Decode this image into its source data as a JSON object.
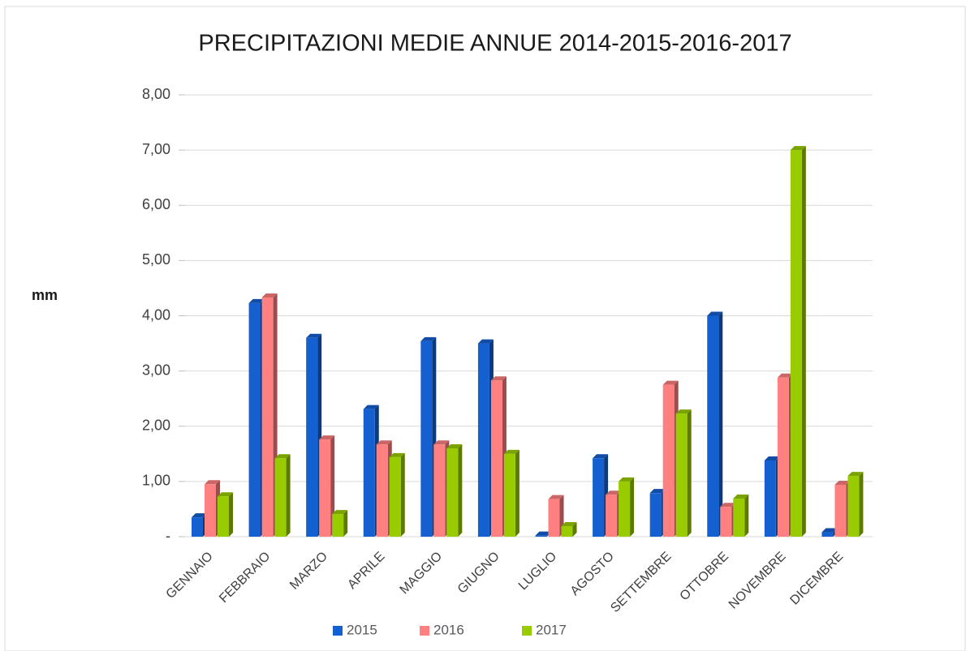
{
  "chart_data": {
    "type": "bar3d",
    "title": "PRECIPITAZIONI MEDIE ANNUE 2014-2015-2016-2017",
    "y_label": "mm",
    "categories": [
      "GENNAIO",
      "FEBBRAIO",
      "MARZO",
      "APRILE",
      "MAGGIO",
      "GIUGNO",
      "LUGLIO",
      "AGOSTO",
      "SETTEMBRE",
      "OTTOBRE",
      "NOVEMBRE",
      "DICEMBRE"
    ],
    "series": [
      {
        "name": "2015",
        "color": "#1560d0",
        "values": [
          0.35,
          4.23,
          3.6,
          2.31,
          3.54,
          3.5,
          0.02,
          1.42,
          0.79,
          4.0,
          1.38,
          0.08
        ]
      },
      {
        "name": "2016",
        "color": "#ff8080",
        "values": [
          0.95,
          4.33,
          1.76,
          1.67,
          1.67,
          2.83,
          0.68,
          0.76,
          2.75,
          0.54,
          2.88,
          0.94
        ]
      },
      {
        "name": "2017",
        "color": "#99cc00",
        "values": [
          0.73,
          1.42,
          0.41,
          1.44,
          1.6,
          1.5,
          0.19,
          1.0,
          2.23,
          0.69,
          7.0,
          1.1
        ]
      }
    ],
    "ylim": [
      0,
      8
    ],
    "yticks": [
      {
        "value": 0,
        "label": "-"
      },
      {
        "value": 1,
        "label": "1,00"
      },
      {
        "value": 2,
        "label": "2,00"
      },
      {
        "value": 3,
        "label": "3,00"
      },
      {
        "value": 4,
        "label": "4,00"
      },
      {
        "value": 5,
        "label": "5,00"
      },
      {
        "value": 6,
        "label": "6,00"
      },
      {
        "value": 7,
        "label": "7,00"
      },
      {
        "value": 8,
        "label": "8,00"
      }
    ],
    "grid": true,
    "legend": "bottom"
  }
}
